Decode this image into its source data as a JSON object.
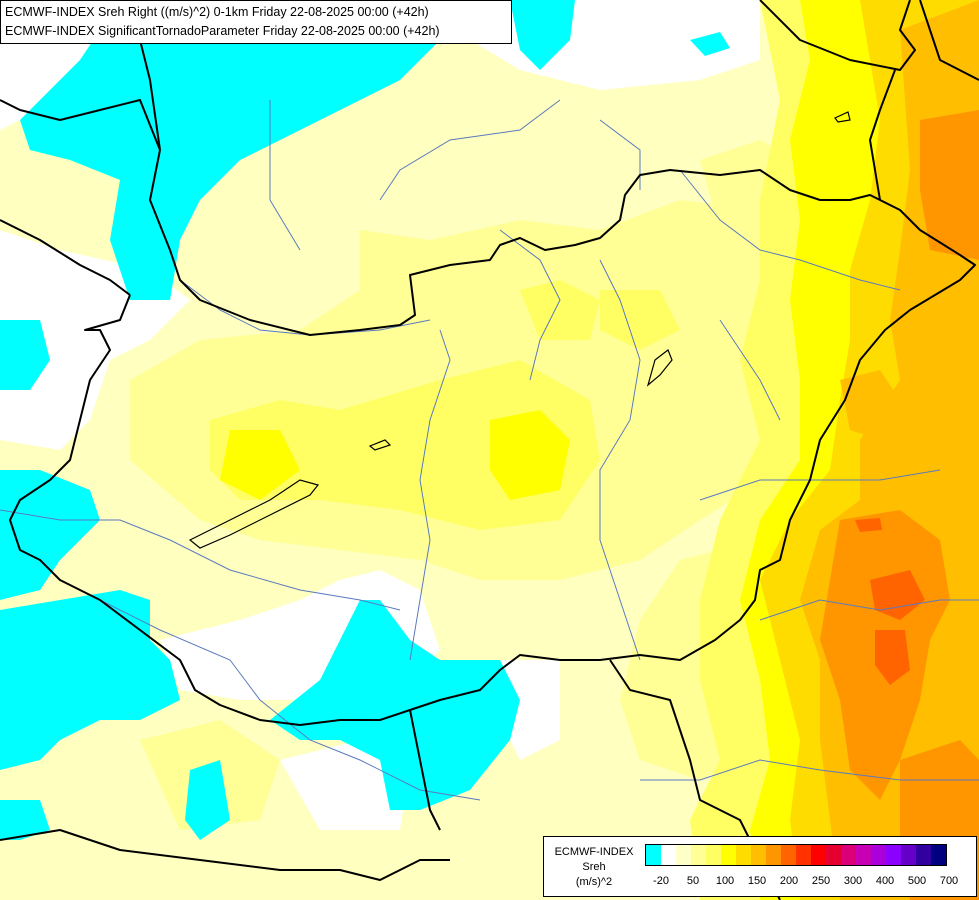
{
  "header": {
    "line1": "ECMWF-INDEX Sreh Right ((m/s)^2) 0-1km Friday 22-08-2025 00:00 (+42h)",
    "line2": "ECMWF-INDEX SignificantTornadoParameter Friday 22-08-2025 00:00 (+42h)"
  },
  "legend": {
    "title1": "ECMWF-INDEX",
    "title2": "Sreh",
    "title3": "(m/s)^2",
    "colors": [
      "#00ffff",
      "#ffffff",
      "#ffffc8",
      "#ffff96",
      "#ffff64",
      "#ffff00",
      "#ffdc00",
      "#ffbe00",
      "#ff9600",
      "#ff6400",
      "#ff3200",
      "#ff0000",
      "#e60032",
      "#dc0078",
      "#c800b4",
      "#aa00dc",
      "#8c00ff",
      "#6400c8",
      "#3200a0",
      "#000080"
    ],
    "ticks": [
      "-20",
      "50",
      "100",
      "150",
      "200",
      "250",
      "300",
      "400",
      "500",
      "700"
    ]
  },
  "palette": {
    "cyan": "#00ffff",
    "white": "#ffffff",
    "pale_yellow": "#ffffc0",
    "light_yellow": "#ffff96",
    "yellow": "#ffff50",
    "bright_yellow": "#ffff00",
    "gold": "#ffdc00",
    "amber": "#ffbe00",
    "orange": "#ff9600",
    "dark_orange": "#ff6400",
    "border_line": "#000000",
    "river_line": "#5a7abf"
  }
}
